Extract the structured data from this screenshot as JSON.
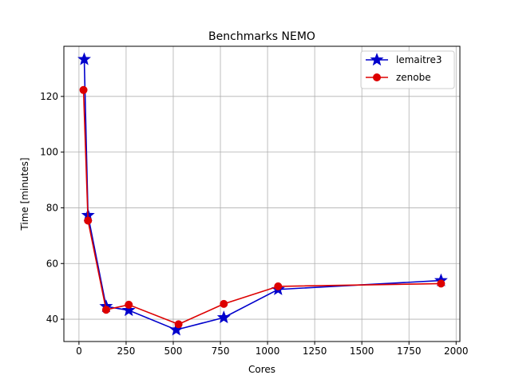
{
  "chart_data": {
    "type": "line",
    "title": "Benchmarks NEMO",
    "xlabel": "Cores",
    "ylabel": "Time [minutes]",
    "xlim": [
      -80,
      2020
    ],
    "ylim": [
      32,
      138
    ],
    "x_ticks": [
      0,
      250,
      500,
      750,
      1000,
      1250,
      1500,
      1750,
      2000
    ],
    "x_tick_labels": [
      "0",
      "250",
      "500",
      "750",
      "1000",
      "1250",
      "1500",
      "1750",
      "2000"
    ],
    "y_ticks": [
      40,
      60,
      80,
      100,
      120
    ],
    "y_tick_labels": [
      "40",
      "60",
      "80",
      "100",
      "120"
    ],
    "grid": true,
    "legend_position": "top-right",
    "series": [
      {
        "name": "lemaitre3",
        "color": "#0000cc",
        "marker": "star",
        "x": [
          28,
          48,
          144,
          264,
          516,
          768,
          1056,
          1920
        ],
        "y": [
          133.3,
          77.3,
          44.6,
          43.2,
          36.2,
          40.6,
          50.7,
          53.9
        ]
      },
      {
        "name": "zenobe",
        "color": "#dd0000",
        "marker": "circle",
        "x": [
          24,
          48,
          144,
          264,
          528,
          768,
          1056,
          1920
        ],
        "y": [
          122.3,
          75.4,
          43.4,
          45.2,
          38.2,
          45.5,
          51.8,
          52.8
        ]
      }
    ]
  }
}
